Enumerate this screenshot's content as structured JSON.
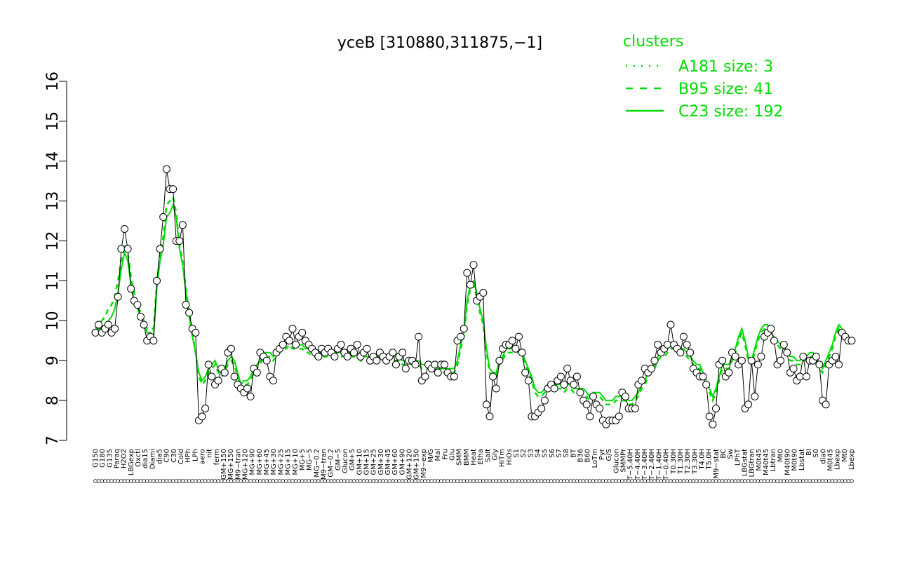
{
  "chart_data": {
    "type": "line",
    "title": "yceB [310880,311875,−1]",
    "xlabel": "",
    "ylabel": "",
    "ylim": [
      7,
      16
    ],
    "yticks": [
      7,
      8,
      9,
      10,
      11,
      12,
      13,
      14,
      15,
      16
    ],
    "grid": false,
    "legend": {
      "position": "top-right",
      "title": "clusters",
      "color": "#00dd00",
      "entries": [
        {
          "label": "A181 size: 3",
          "style": "dotted"
        },
        {
          "label": "B95 size: 41",
          "style": "dashed"
        },
        {
          "label": "C23 size: 192",
          "style": "solid"
        }
      ]
    },
    "x_tick_labels": [
      "G150",
      "G180",
      "G135",
      "Paraq",
      "H2O2",
      "LBGexp",
      "Oxctl",
      "dia15",
      "Diami",
      "dia5",
      "C90",
      "C30",
      "Cold",
      "HPh",
      "LPh",
      "aero",
      "nit",
      "ferm",
      "GM+150",
      "MG+150",
      "M9−tran",
      "MG+120",
      "MG+90",
      "MG+60",
      "MG+45",
      "MG+30",
      "MG+25",
      "MG+15",
      "MG+10",
      "MG+5",
      "MG−5",
      "MG−0.2",
      "M9−tran",
      "GM−0.2",
      "GM−5",
      "Glucon",
      "GM+5",
      "GM+10",
      "GM+15",
      "GM+25",
      "GM+30",
      "GM+45",
      "GM+60",
      "GM+90",
      "GM+120",
      "GM+150",
      "M9−exp",
      "M/G",
      "Mal",
      "Fru",
      "Glu",
      "SMM",
      "BMM",
      "Heat",
      "Etha",
      "Salt",
      "Gly",
      "HiTm",
      "HiOs",
      "S1",
      "S2",
      "S3",
      "S4",
      "S5",
      "S6",
      "S7",
      "S8",
      "BT",
      "B36",
      "B60",
      "LoTm",
      "Pyr",
      "G/S",
      "Glucon",
      "SMMPr",
      "T−5.40H",
      "T−4.40H",
      "T−3.40H",
      "T−2.40H",
      "T−1.40H",
      "T−0.40H",
      "T0.30H",
      "T1.30H",
      "T2.30H",
      "T3.30H",
      "T4.0H",
      "T5.0H",
      "M9−stat",
      "BC",
      "Sw",
      "LPhT",
      "LBGstat",
      "LBGtran",
      "M0t45",
      "M40t45",
      "Lbtran",
      "Mt0",
      "M40t90",
      "M0t90",
      "Lbstat",
      "BI",
      "S0",
      "dia0",
      "M0t45",
      "Lbexp",
      "Mt0",
      "Lbexp"
    ],
    "series": [
      {
        "name": "",
        "style": "solid-black-with-points",
        "values": [
          9.7,
          9.9,
          9.7,
          9.8,
          9.9,
          9.7,
          9.8,
          10.6,
          11.8,
          12.3,
          11.8,
          10.8,
          10.5,
          10.4,
          10.1,
          9.9,
          9.5,
          9.6,
          9.5,
          11.0,
          11.8,
          12.6,
          13.8,
          13.3,
          13.3,
          12.0,
          12.0,
          12.4,
          10.4,
          10.2,
          9.8,
          9.7,
          7.5,
          7.6,
          7.8,
          8.9,
          8.6,
          8.4,
          8.5,
          8.8,
          8.7,
          9.2,
          9.3,
          8.6,
          8.4,
          8.3,
          8.2,
          8.3,
          8.1,
          8.8,
          8.7,
          9.2,
          9.1,
          9.0,
          8.6,
          8.5,
          9.2,
          9.3,
          9.4,
          9.6,
          9.5,
          9.8,
          9.4,
          9.6,
          9.7,
          9.5,
          9.4,
          9.3,
          9.2,
          9.1,
          9.3,
          9.2,
          9.3,
          9.2,
          9.1,
          9.3,
          9.4,
          9.2,
          9.1,
          9.3,
          9.2,
          9.4,
          9.1,
          9.2,
          9.3,
          9.0,
          9.1,
          9.0,
          9.2,
          9.1,
          9.0,
          9.1,
          9.2,
          8.9,
          9.1,
          9.2,
          8.8,
          9.0,
          9.0,
          8.9,
          9.6,
          8.5,
          8.6,
          8.9,
          8.8,
          8.9,
          8.7,
          8.9,
          8.9,
          8.7,
          8.6,
          8.6,
          9.5,
          9.6,
          9.8,
          11.2,
          10.9,
          11.4,
          10.5,
          10.6,
          10.7,
          7.9,
          7.6,
          8.6,
          8.3,
          9.0,
          9.3,
          9.4,
          9.4,
          9.5,
          9.3,
          9.6,
          9.2,
          8.7,
          8.5,
          7.6,
          7.6,
          7.7,
          7.8,
          8.0,
          8.3,
          8.4,
          8.3,
          8.5,
          8.6,
          8.4,
          8.8,
          8.5,
          8.4,
          8.6,
          8.2,
          8.0,
          7.9,
          7.6,
          8.1,
          7.9,
          7.8,
          7.5,
          7.4,
          7.5,
          7.5,
          7.5,
          7.6,
          8.2,
          8.1,
          7.8,
          7.8,
          7.8,
          8.4,
          8.5,
          8.8,
          8.7,
          8.8,
          9.0,
          9.4,
          9.2,
          9.3,
          9.4,
          9.9,
          9.4,
          9.3,
          9.2,
          9.6,
          9.4,
          9.2,
          8.8,
          8.7,
          8.6,
          8.6,
          8.4,
          7.6,
          7.4,
          7.8,
          8.9,
          9.0,
          8.6,
          8.7,
          9.2,
          9.1,
          8.9,
          9.0,
          7.8,
          7.9,
          9.0,
          8.1,
          8.9,
          9.1,
          9.6,
          9.7,
          9.8,
          9.5,
          8.9,
          9.0,
          9.4,
          9.2,
          8.7,
          8.8,
          8.5,
          8.6,
          9.1,
          8.6,
          9.0,
          9.0,
          9.1,
          8.9,
          8.0,
          7.9,
          8.9,
          9.0,
          9.1,
          8.9,
          9.7,
          9.6,
          9.5,
          9.5
        ]
      },
      {
        "name": "C23 size: 192",
        "style": "solid-green",
        "values": [
          9.7,
          9.8,
          9.8,
          9.9,
          10.0,
          10.1,
          10.3,
          10.7,
          11.3,
          11.7,
          11.5,
          10.9,
          10.5,
          10.3,
          10.1,
          9.9,
          9.7,
          9.7,
          9.6,
          10.8,
          11.5,
          11.9,
          12.6,
          12.7,
          12.9,
          12.6,
          11.8,
          11.4,
          10.7,
          10.1,
          9.6,
          9.2,
          8.7,
          8.5,
          8.6,
          8.8,
          8.9,
          9.0,
          8.8,
          8.7,
          8.8,
          9.0,
          9.1,
          9.0,
          8.7,
          8.4,
          8.5,
          8.5,
          8.6,
          8.8,
          8.9,
          9.0,
          9.2,
          9.2,
          9.2,
          9.1,
          9.2,
          9.3,
          9.4,
          9.4,
          9.5,
          9.4,
          9.4,
          9.4,
          9.4,
          9.3,
          9.3,
          9.2,
          9.2,
          9.2,
          9.2,
          9.2,
          9.2,
          9.2,
          9.2,
          9.2,
          9.2,
          9.2,
          9.2,
          9.2,
          9.2,
          9.2,
          9.1,
          9.1,
          9.1,
          9.1,
          9.1,
          9.1,
          9.1,
          9.1,
          9.1,
          9.1,
          9.1,
          9.1,
          9.1,
          9.0,
          9.0,
          9.0,
          9.0,
          9.0,
          9.0,
          8.9,
          8.9,
          8.9,
          8.9,
          8.9,
          8.8,
          8.8,
          8.8,
          8.8,
          8.8,
          8.8,
          9.0,
          9.4,
          9.7,
          10.5,
          10.9,
          11.0,
          10.7,
          10.3,
          10.0,
          9.3,
          8.8,
          8.7,
          8.7,
          9.0,
          9.1,
          9.3,
          9.3,
          9.3,
          9.3,
          9.3,
          9.2,
          9.0,
          8.8,
          8.6,
          8.3,
          8.2,
          8.2,
          8.3,
          8.4,
          8.4,
          8.4,
          8.4,
          8.4,
          8.3,
          8.4,
          8.4,
          8.3,
          8.3,
          8.3,
          8.3,
          8.2,
          8.1,
          8.2,
          8.2,
          8.2,
          8.1,
          8.0,
          8.0,
          8.0,
          8.1,
          8.1,
          8.1,
          8.1,
          8.0,
          8.0,
          8.1,
          8.2,
          8.4,
          8.5,
          8.7,
          8.8,
          8.9,
          9.1,
          9.2,
          9.2,
          9.3,
          9.4,
          9.4,
          9.3,
          9.3,
          9.3,
          9.2,
          9.1,
          9.0,
          8.9,
          8.9,
          8.7,
          8.5,
          8.3,
          8.1,
          8.3,
          8.6,
          8.9,
          8.9,
          8.9,
          9.1,
          9.3,
          9.6,
          9.8,
          9.5,
          9.1,
          9.0,
          9.3,
          9.6,
          9.8,
          9.9,
          9.9,
          9.7,
          9.6,
          9.5,
          9.4,
          9.3,
          9.2,
          9.1,
          9.1,
          9.0,
          9.0,
          9.1,
          9.1,
          9.2,
          9.2,
          9.1,
          8.9,
          8.8,
          9.0,
          9.2,
          9.4,
          9.7,
          9.9,
          9.8,
          9.7,
          9.6
        ]
      },
      {
        "name": "B95 size: 41",
        "style": "dashed-green",
        "values": [
          9.8,
          9.9,
          10.0,
          10.1,
          10.3,
          10.4,
          10.6,
          11.0,
          11.5,
          11.9,
          11.7,
          11.1,
          10.7,
          10.4,
          10.2,
          10.0,
          9.8,
          9.8,
          9.8,
          10.9,
          11.6,
          12.1,
          12.9,
          13.0,
          13.1,
          12.7,
          11.9,
          11.5,
          10.8,
          10.2,
          9.7,
          9.2,
          8.6,
          8.4,
          8.5,
          8.7,
          8.8,
          8.9,
          8.7,
          8.6,
          8.7,
          8.9,
          9.0,
          8.9,
          8.6,
          8.3,
          8.4,
          8.4,
          8.5,
          8.7,
          8.8,
          8.9,
          9.1,
          9.1,
          9.1,
          9.0,
          9.1,
          9.2,
          9.3,
          9.3,
          9.4,
          9.3,
          9.3,
          9.3,
          9.3,
          9.2,
          9.2,
          9.1,
          9.1,
          9.1,
          9.1,
          9.1,
          9.1,
          9.1,
          9.1,
          9.1,
          9.1,
          9.1,
          9.1,
          9.1,
          9.1,
          9.1,
          9.0,
          9.0,
          9.0,
          9.0,
          9.0,
          9.0,
          9.0,
          9.0,
          9.0,
          9.0,
          9.0,
          9.0,
          9.0,
          8.9,
          8.9,
          8.9,
          8.9,
          8.9,
          8.9,
          8.8,
          8.8,
          8.8,
          8.8,
          8.8,
          8.7,
          8.7,
          8.7,
          8.7,
          8.7,
          8.7,
          8.9,
          9.3,
          9.6,
          10.4,
          10.8,
          10.9,
          10.6,
          10.2,
          9.9,
          9.2,
          8.7,
          8.6,
          8.6,
          8.9,
          9.0,
          9.2,
          9.2,
          9.2,
          9.2,
          9.2,
          9.1,
          8.9,
          8.7,
          8.5,
          8.2,
          8.1,
          8.1,
          8.2,
          8.3,
          8.3,
          8.3,
          8.3,
          8.3,
          8.2,
          8.3,
          8.3,
          8.2,
          8.2,
          8.2,
          8.2,
          8.1,
          8.0,
          8.1,
          8.1,
          8.1,
          8.0,
          7.9,
          7.9,
          7.9,
          8.0,
          8.0,
          8.0,
          8.0,
          7.9,
          7.9,
          8.0,
          8.1,
          8.3,
          8.4,
          8.6,
          8.7,
          8.8,
          9.0,
          9.1,
          9.1,
          9.2,
          9.3,
          9.3,
          9.2,
          9.2,
          9.2,
          9.1,
          9.0,
          8.9,
          8.8,
          8.8,
          8.6,
          8.4,
          8.2,
          8.0,
          8.2,
          8.5,
          8.8,
          8.8,
          8.8,
          9.0,
          9.2,
          9.5,
          9.7,
          9.4,
          9.0,
          8.9,
          9.2,
          9.5,
          9.7,
          9.8,
          9.8,
          9.6,
          9.5,
          9.4,
          9.3,
          9.2,
          9.1,
          9.0,
          9.0,
          8.9,
          8.9,
          9.0,
          9.0,
          9.1,
          9.1,
          9.0,
          8.8,
          8.7,
          8.9,
          9.1,
          9.3,
          9.6,
          9.8,
          9.7,
          9.6,
          9.5
        ]
      }
    ]
  }
}
